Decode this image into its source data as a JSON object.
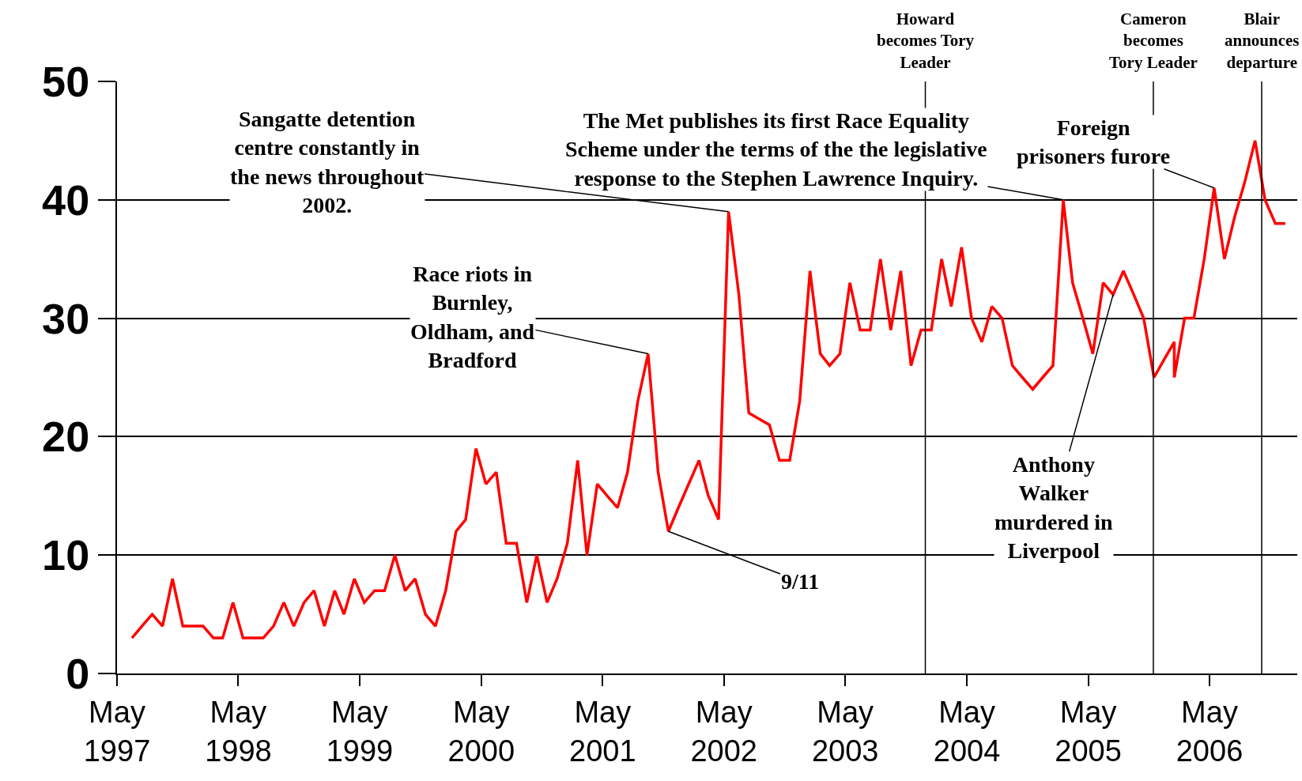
{
  "chart_data": {
    "type": "line",
    "x": [
      "1997-06-15",
      "1997-07-15",
      "1997-08-15",
      "1997-09-15",
      "1997-10-15",
      "1997-11-15",
      "1997-12-15",
      "1998-01-15",
      "1998-02-15",
      "1998-03-15",
      "1998-04-15",
      "1998-05-15",
      "1998-06-15",
      "1998-07-15",
      "1998-08-15",
      "1998-09-15",
      "1998-10-15",
      "1998-11-15",
      "1998-12-15",
      "1999-01-15",
      "1999-02-15",
      "1999-03-15",
      "1999-04-15",
      "1999-05-15",
      "1999-06-15",
      "1999-07-15",
      "1999-08-15",
      "1999-09-15",
      "1999-10-15",
      "1999-11-15",
      "1999-12-15",
      "2000-01-15",
      "2000-02-15",
      "2000-03-15",
      "2000-04-15",
      "2000-05-15",
      "2000-06-15",
      "2000-07-15",
      "2000-08-15",
      "2000-09-15",
      "2000-10-15",
      "2000-11-15",
      "2000-12-15",
      "2001-01-15",
      "2001-02-15",
      "2001-03-15",
      "2001-04-15",
      "2001-05-15",
      "2001-06-15",
      "2001-07-15",
      "2001-08-15",
      "2001-09-15",
      "2001-10-15",
      "2001-11-15",
      "2001-12-15",
      "2002-01-15",
      "2002-02-15",
      "2002-03-15",
      "2002-04-15",
      "2002-05-15",
      "2002-06-15",
      "2002-07-15",
      "2002-08-15",
      "2002-09-15",
      "2002-10-15",
      "2002-11-15",
      "2002-12-15",
      "2003-01-15",
      "2003-02-15",
      "2003-03-15",
      "2003-04-15",
      "2003-05-15",
      "2003-06-15",
      "2003-07-15",
      "2003-08-15",
      "2003-09-15",
      "2003-10-15",
      "2003-11-15",
      "2003-12-15",
      "2004-01-15",
      "2004-02-15",
      "2004-03-15",
      "2004-04-15",
      "2004-05-15",
      "2004-06-15",
      "2004-07-15",
      "2004-08-15",
      "2004-09-15",
      "2004-10-15",
      "2004-11-15",
      "2004-12-15",
      "2005-01-15",
      "2005-02-15",
      "2005-03-15",
      "2005-04-15",
      "2005-05-15",
      "2005-06-15",
      "2005-07-15",
      "2005-08-15",
      "2005-09-15",
      "2005-10-15",
      "2005-11-15",
      "2005-12-15",
      "2006-01-15",
      "2006-01-15",
      "2006-02-15",
      "2006-03-15",
      "2006-04-15",
      "2006-05-15",
      "2006-06-15",
      "2006-07-15",
      "2006-08-15",
      "2006-09-15",
      "2006-10-15",
      "2006-11-15",
      "2006-12-15"
    ],
    "series": [
      {
        "color": "#ff0000",
        "values": [
          3,
          4,
          5,
          4,
          8,
          4,
          4,
          4,
          3,
          3,
          6,
          3,
          3,
          3,
          4,
          6,
          4,
          6,
          7,
          4,
          7,
          5,
          8,
          6,
          7,
          7,
          10,
          7,
          8,
          5,
          4,
          7,
          12,
          13,
          19,
          16,
          17,
          11,
          11,
          6,
          10,
          6,
          8,
          11,
          18,
          10,
          16,
          15,
          14,
          17,
          23,
          27,
          17,
          12,
          14,
          16,
          18,
          15,
          13,
          39,
          32,
          22,
          21.5,
          21,
          18,
          18,
          23,
          34,
          27,
          26,
          27,
          33,
          29,
          29,
          35,
          29,
          34,
          26,
          29,
          29,
          35,
          31,
          36,
          30,
          28,
          31,
          30,
          26,
          25,
          24,
          25,
          26,
          40,
          33,
          30,
          27,
          33,
          32,
          34,
          32,
          30,
          25,
          26.5,
          28,
          25,
          30,
          30,
          35,
          41,
          35,
          38.5,
          41.5,
          45,
          40,
          38,
          38
        ]
      }
    ],
    "xlim": [
      "1997-05-01",
      "2007-01-20"
    ],
    "xticks": [
      {
        "value": "1997-05-01",
        "label": "May\n1997"
      },
      {
        "value": "1998-05-01",
        "label": "May\n1998"
      },
      {
        "value": "1999-05-01",
        "label": "May\n1999"
      },
      {
        "value": "2000-05-01",
        "label": "May\n2000"
      },
      {
        "value": "2001-05-01",
        "label": "May\n2001"
      },
      {
        "value": "2002-05-01",
        "label": "May\n2002"
      },
      {
        "value": "2003-05-01",
        "label": "May\n2003"
      },
      {
        "value": "2004-05-01",
        "label": "May\n2004"
      },
      {
        "value": "2005-05-01",
        "label": "May\n2005"
      },
      {
        "value": "2006-05-01",
        "label": "May\n2006"
      }
    ],
    "ylim": [
      0,
      50
    ],
    "yticks": [
      0,
      10,
      20,
      30,
      40,
      50
    ],
    "grid": "y",
    "ref_lines": [
      {
        "axis": "x",
        "value": "2003-12-28",
        "label": "Howard\nbecomes Tory\nLeader",
        "color": "#000000"
      },
      {
        "axis": "x",
        "value": "2005-11-13",
        "label": "Cameron\nbecomes\nTory Leader",
        "color": "#000000"
      },
      {
        "axis": "x",
        "value": "2006-10-05",
        "label": "Blair\nannounces\ndeparture",
        "color": "#000000"
      }
    ],
    "annotations": [
      {
        "text": "Sangatte detention\ncentre constantly in\nthe news throughout\n2002.",
        "x": "2002-05-15",
        "y": 39
      },
      {
        "text": "The Met publishes its first Race Equality\nScheme under the terms of the the legislative\nresponse to the Stephen Lawrence Inquiry.",
        "x": "2005-02-15",
        "y": 40
      },
      {
        "text": "Foreign\nprisoners furore",
        "x": "2006-05-15",
        "y": 41
      },
      {
        "text": "Race riots in\nBurnley,\nOldham, and\nBradford",
        "x": "2001-09-15",
        "y": 27
      },
      {
        "text": "9/11",
        "x": "2001-11-15",
        "y": 12
      },
      {
        "text": "Anthony\nWalker\nmurdered in\nLiverpool",
        "x": "2005-07-15",
        "y": 32
      }
    ]
  }
}
